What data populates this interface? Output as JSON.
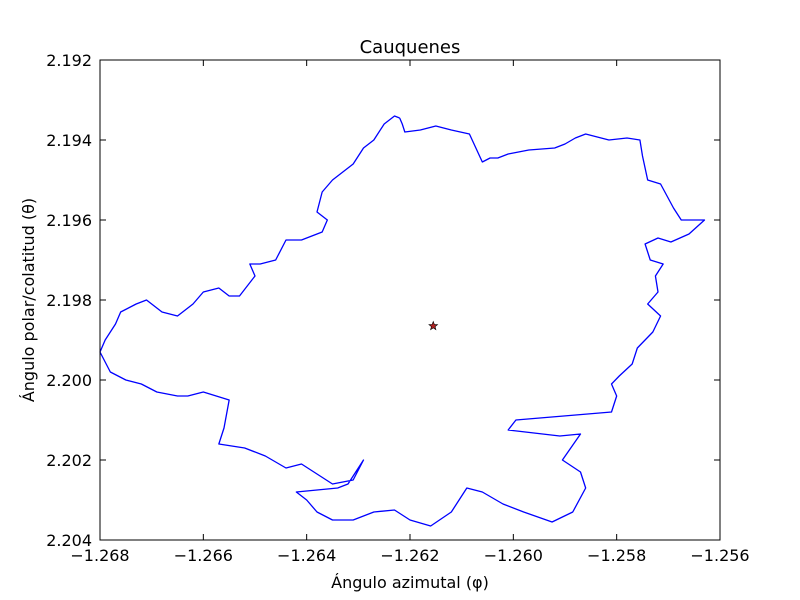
{
  "chart_data": {
    "type": "line",
    "title": "Cauquenes",
    "xlabel": "Ángulo azimutal (φ)",
    "ylabel": "Ángulo polar/colatitud (θ)",
    "xlim": [
      -1.268,
      -1.256
    ],
    "ylim": [
      2.204,
      2.192
    ],
    "y_inverted": true,
    "x_ticks": [
      -1.268,
      -1.266,
      -1.264,
      -1.262,
      -1.26,
      -1.258,
      -1.256
    ],
    "x_tick_labels": [
      "−1.268",
      "−1.266",
      "−1.264",
      "−1.262",
      "−1.260",
      "−1.258",
      "−1.256"
    ],
    "y_ticks": [
      2.192,
      2.194,
      2.196,
      2.198,
      2.2,
      2.202,
      2.204
    ],
    "y_tick_labels": [
      "2.192",
      "2.194",
      "2.196",
      "2.198",
      "2.200",
      "2.202",
      "2.204"
    ],
    "grid": false,
    "series": [
      {
        "kind": "boundary",
        "color": "#0000ff",
        "points": [
          [
            -1.2622,
            2.19345
          ],
          [
            -1.26215,
            2.1936
          ],
          [
            -1.2621,
            2.1938
          ],
          [
            -1.2618,
            2.19375
          ],
          [
            -1.2615,
            2.19365
          ],
          [
            -1.2612,
            2.19375
          ],
          [
            -1.26085,
            2.19385
          ],
          [
            -1.2606,
            2.19455
          ],
          [
            -1.26045,
            2.19445
          ],
          [
            -1.2603,
            2.19445
          ],
          [
            -1.2601,
            2.19435
          ],
          [
            -1.2597,
            2.19425
          ],
          [
            -1.2592,
            2.1942
          ],
          [
            -1.259,
            2.1941
          ],
          [
            -1.2588,
            2.19395
          ],
          [
            -1.2586,
            2.19385
          ],
          [
            -1.25815,
            2.194
          ],
          [
            -1.2578,
            2.19395
          ],
          [
            -1.25755,
            2.194
          ],
          [
            -1.2575,
            2.1944
          ],
          [
            -1.2574,
            2.195
          ],
          [
            -1.25715,
            2.1951
          ],
          [
            -1.2569,
            2.1957
          ],
          [
            -1.25675,
            2.196
          ],
          [
            -1.2565,
            2.196
          ],
          [
            -1.2563,
            2.196
          ],
          [
            -1.2566,
            2.19635
          ],
          [
            -1.25695,
            2.19655
          ],
          [
            -1.2572,
            2.19645
          ],
          [
            -1.25745,
            2.1966
          ],
          [
            -1.25735,
            2.197
          ],
          [
            -1.2571,
            2.1971
          ],
          [
            -1.25725,
            2.1974
          ],
          [
            -1.2572,
            2.1978
          ],
          [
            -1.2574,
            2.1981
          ],
          [
            -1.25715,
            2.1984
          ],
          [
            -1.2573,
            2.1988
          ],
          [
            -1.2576,
            2.1992
          ],
          [
            -1.2577,
            2.1996
          ],
          [
            -1.25795,
            2.1999
          ],
          [
            -1.2581,
            2.2001
          ],
          [
            -1.258,
            2.2004
          ],
          [
            -1.2581,
            2.2008
          ],
          [
            -1.25995,
            2.201
          ],
          [
            -1.2601,
            2.20125
          ],
          [
            -1.2591,
            2.2014
          ],
          [
            -1.2587,
            2.20135
          ],
          [
            -1.25905,
            2.202
          ],
          [
            -1.2587,
            2.2023
          ],
          [
            -1.2586,
            2.2027
          ],
          [
            -1.25885,
            2.2033
          ],
          [
            -1.25925,
            2.20355
          ],
          [
            -1.2598,
            2.2033
          ],
          [
            -1.2602,
            2.2031
          ],
          [
            -1.2606,
            2.2028
          ],
          [
            -1.2609,
            2.2027
          ],
          [
            -1.2612,
            2.2033
          ],
          [
            -1.2616,
            2.20365
          ],
          [
            -1.262,
            2.2035
          ],
          [
            -1.2623,
            2.20325
          ],
          [
            -1.2627,
            2.2033
          ],
          [
            -1.2631,
            2.2035
          ],
          [
            -1.2635,
            2.2035
          ],
          [
            -1.2638,
            2.2033
          ],
          [
            -1.264,
            2.203
          ],
          [
            -1.2642,
            2.2028
          ],
          [
            -1.2638,
            2.20275
          ],
          [
            -1.2634,
            2.2027
          ],
          [
            -1.2632,
            2.2026
          ],
          [
            -1.26315,
            2.2025
          ],
          [
            -1.2629,
            2.202
          ],
          [
            -1.2631,
            2.2025
          ],
          [
            -1.2635,
            2.2026
          ],
          [
            -1.2641,
            2.2021
          ],
          [
            -1.2644,
            2.2022
          ],
          [
            -1.2648,
            2.2019
          ],
          [
            -1.2652,
            2.2017
          ],
          [
            -1.2657,
            2.2016
          ],
          [
            -1.2656,
            2.2012
          ],
          [
            -1.2655,
            2.2005
          ],
          [
            -1.266,
            2.2003
          ],
          [
            -1.2663,
            2.2004
          ],
          [
            -1.2665,
            2.2004
          ],
          [
            -1.2669,
            2.2003
          ],
          [
            -1.2672,
            2.2001
          ],
          [
            -1.2675,
            2.2
          ],
          [
            -1.2678,
            2.1998
          ],
          [
            -1.268,
            2.1993
          ],
          [
            -1.2679,
            2.199
          ],
          [
            -1.2677,
            2.1986
          ],
          [
            -1.2676,
            2.1983
          ],
          [
            -1.2673,
            2.1981
          ],
          [
            -1.2671,
            2.198
          ],
          [
            -1.2668,
            2.1983
          ],
          [
            -1.2665,
            2.1984
          ],
          [
            -1.2662,
            2.1981
          ],
          [
            -1.266,
            2.1978
          ],
          [
            -1.2657,
            2.1977
          ],
          [
            -1.2655,
            2.1979
          ],
          [
            -1.2653,
            2.1979
          ],
          [
            -1.265,
            2.1974
          ],
          [
            -1.2651,
            2.1971
          ],
          [
            -1.2649,
            2.1971
          ],
          [
            -1.2646,
            2.197
          ],
          [
            -1.2644,
            2.1965
          ],
          [
            -1.2641,
            2.1965
          ],
          [
            -1.2637,
            2.1963
          ],
          [
            -1.2636,
            2.196
          ],
          [
            -1.2638,
            2.1958
          ],
          [
            -1.2637,
            2.1953
          ],
          [
            -1.2635,
            2.195
          ],
          [
            -1.2633,
            2.1948
          ],
          [
            -1.2631,
            2.1946
          ],
          [
            -1.2629,
            2.1942
          ],
          [
            -1.2627,
            2.194
          ],
          [
            -1.2625,
            2.1936
          ],
          [
            -1.2623,
            2.1934
          ],
          [
            -1.2622,
            2.19345
          ]
        ]
      }
    ],
    "marker": {
      "x": -1.26155,
      "y": 2.19865,
      "symbol": "star",
      "color": "#b22222"
    }
  }
}
